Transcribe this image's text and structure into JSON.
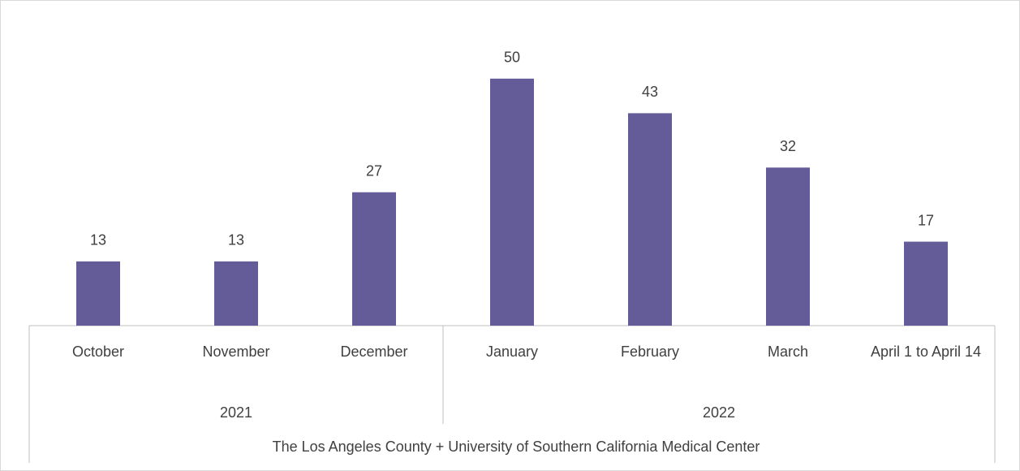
{
  "chart_data": {
    "type": "bar",
    "color": "#635c99",
    "ylim": [
      0,
      60
    ],
    "groups": [
      {
        "label": "2021",
        "categories": [
          "October",
          "November",
          "December"
        ],
        "values": [
          13,
          13,
          27
        ]
      },
      {
        "label": "2022",
        "categories": [
          "January",
          "February",
          "March",
          "April 1 to April 14"
        ],
        "values": [
          50,
          43,
          32,
          17
        ]
      }
    ],
    "axis_title": "The Los Angeles County + University of Southern California Medical Center"
  }
}
